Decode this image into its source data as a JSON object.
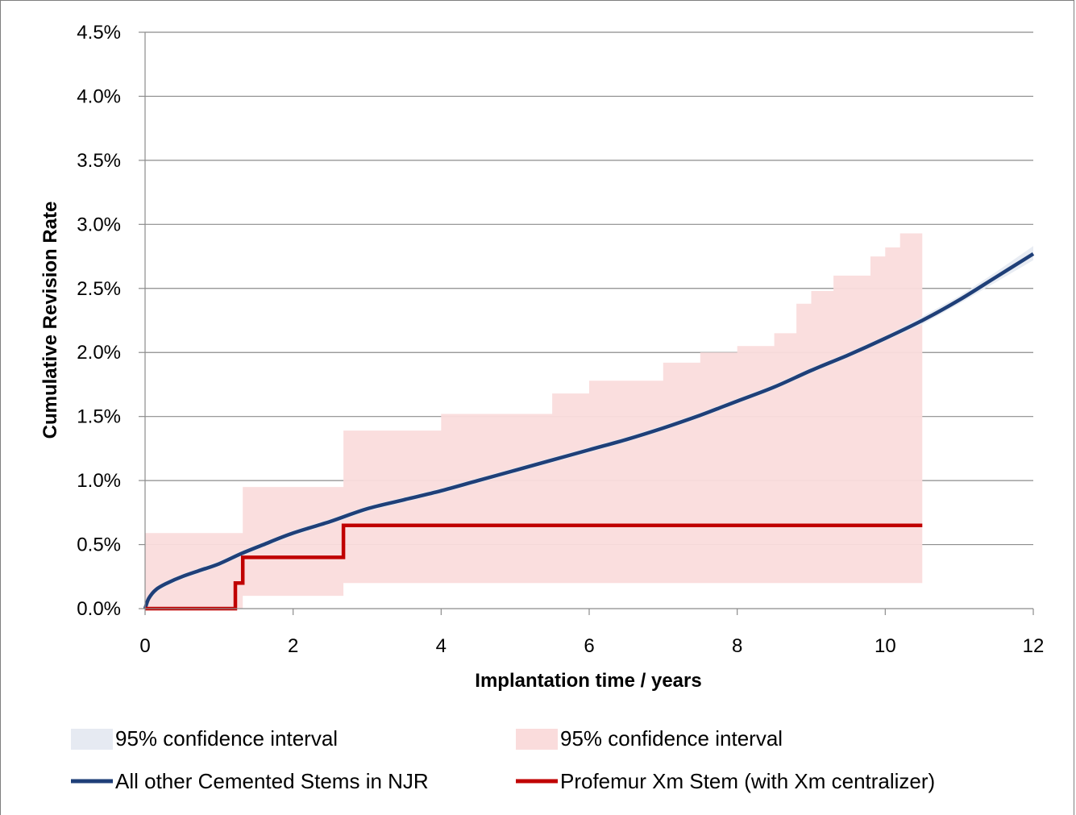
{
  "chart_data": {
    "type": "line",
    "xlabel": "Implantation time  / years",
    "ylabel": "Cumulative Revision Rate",
    "xlim": [
      0,
      12
    ],
    "ylim": [
      0,
      0.045
    ],
    "x_ticks": [
      "0",
      "2",
      "4",
      "6",
      "8",
      "10",
      "12"
    ],
    "y_ticks": [
      "0.0%",
      "0.5%",
      "1.0%",
      "1.5%",
      "2.0%",
      "2.5%",
      "3.0%",
      "3.5%",
      "4.0%",
      "4.5%"
    ],
    "grid": "horizontal",
    "legend_position": "bottom",
    "legend": [
      {
        "label": "95% confidence interval",
        "kind": "area",
        "color": "#e6eaf2"
      },
      {
        "label": "95% confidence interval",
        "kind": "area",
        "color": "#fadcdc"
      },
      {
        "label": "All other Cemented Stems in NJR",
        "kind": "line",
        "color": "#1f3f78"
      },
      {
        "label": "Profemur Xm Stem (with Xm centralizer)",
        "kind": "line",
        "color": "#c00000"
      }
    ],
    "series": [
      {
        "name": "All other Cemented Stems in NJR",
        "color": "#1f3f78",
        "style": "smooth",
        "x": [
          0,
          0.05,
          0.15,
          0.3,
          0.5,
          0.75,
          1.0,
          1.3,
          1.6,
          2.0,
          2.5,
          3.0,
          3.5,
          4.0,
          4.5,
          5.0,
          5.5,
          6.0,
          6.5,
          7.0,
          7.5,
          8.0,
          8.5,
          9.0,
          9.5,
          10.0,
          10.5,
          11.0,
          11.5,
          12.0
        ],
        "y": [
          0,
          0.0008,
          0.0015,
          0.002,
          0.0025,
          0.003,
          0.0035,
          0.0043,
          0.005,
          0.0059,
          0.0068,
          0.0078,
          0.0085,
          0.0092,
          0.01,
          0.0108,
          0.0116,
          0.0124,
          0.0132,
          0.0141,
          0.0151,
          0.0162,
          0.0173,
          0.0186,
          0.0198,
          0.0211,
          0.0225,
          0.0241,
          0.0259,
          0.0277
        ],
        "ci_lower": [
          0,
          0.0006,
          0.0013,
          0.0018,
          0.0023,
          0.0028,
          0.0033,
          0.0041,
          0.0048,
          0.0057,
          0.0066,
          0.0076,
          0.0083,
          0.009,
          0.0098,
          0.0106,
          0.0114,
          0.0122,
          0.013,
          0.0139,
          0.0149,
          0.016,
          0.0171,
          0.0184,
          0.0196,
          0.0209,
          0.0222,
          0.0238,
          0.0255,
          0.0272
        ],
        "ci_upper": [
          0,
          0.001,
          0.0017,
          0.0022,
          0.0027,
          0.0032,
          0.0037,
          0.0045,
          0.0052,
          0.0061,
          0.007,
          0.008,
          0.0087,
          0.0094,
          0.0102,
          0.011,
          0.0118,
          0.0126,
          0.0134,
          0.0143,
          0.0153,
          0.0164,
          0.0175,
          0.0188,
          0.02,
          0.0213,
          0.0228,
          0.0244,
          0.0263,
          0.0283
        ]
      },
      {
        "name": "Profemur Xm Stem (with Xm centralizer)",
        "color": "#c00000",
        "style": "step",
        "x": [
          0,
          1.22,
          1.32,
          2.68,
          10.5
        ],
        "y": [
          0,
          0.002,
          0.004,
          0.0065,
          0.0065
        ],
        "ci_lower_step": {
          "x": [
            0,
            1.32,
            2.68,
            10.5
          ],
          "y": [
            0,
            0.001,
            0.002,
            0.002
          ]
        },
        "ci_upper_step": {
          "x": [
            0,
            1.32,
            2.68,
            4.0,
            5.5,
            6.0,
            7.0,
            7.5,
            8.0,
            8.5,
            8.8,
            9.0,
            9.3,
            9.6,
            9.8,
            10.0,
            10.2,
            10.5
          ],
          "y": [
            0.0059,
            0.0095,
            0.0139,
            0.0152,
            0.0168,
            0.0178,
            0.0192,
            0.02,
            0.0205,
            0.0215,
            0.0238,
            0.0248,
            0.026,
            0.026,
            0.0275,
            0.0282,
            0.0293,
            0.0293
          ]
        }
      }
    ]
  }
}
